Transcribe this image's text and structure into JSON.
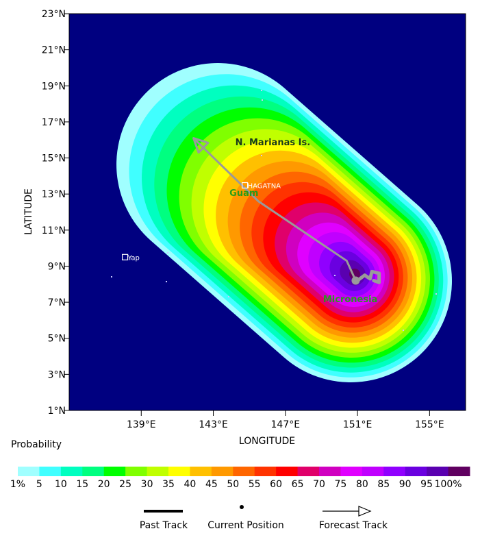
{
  "map": {
    "x_axis_title": "LONGITUDE",
    "y_axis_title": "LATITUDE",
    "lon_ticks": [
      "139°E",
      "143°E",
      "147°E",
      "151°E",
      "155°E"
    ],
    "lat_ticks": [
      "23°N",
      "21°N",
      "19°N",
      "17°N",
      "15°N",
      "13°N",
      "11°N",
      "9°N",
      "7°N",
      "5°N",
      "3°N",
      "1°N"
    ],
    "lon_range": [
      135.0,
      157.0
    ],
    "lat_range": [
      1.0,
      23.0
    ],
    "background_color": "#000080",
    "places": [
      {
        "label": "HAGATNA",
        "lon": 144.75,
        "lat": 13.48,
        "style": "city"
      },
      {
        "label": "Yap",
        "lon": 138.1,
        "lat": 9.5,
        "style": "city"
      },
      {
        "label": "Guam",
        "lon": 144.7,
        "lat": 12.9,
        "style": "region-green"
      },
      {
        "label": "N. Marianas Is.",
        "lon": 146.3,
        "lat": 15.7,
        "style": "region-dark"
      },
      {
        "label": "Micronesia",
        "lon": 150.6,
        "lat": 7.0,
        "style": "region-green"
      }
    ],
    "past_track": [
      [
        151.0,
        8.2
      ],
      [
        151.4,
        8.5
      ],
      [
        151.7,
        8.3
      ],
      [
        151.8,
        8.7
      ],
      [
        152.2,
        8.6
      ],
      [
        152.2,
        8.1
      ],
      [
        151.9,
        8.2
      ]
    ],
    "current_position": {
      "lon": 150.9,
      "lat": 8.2
    },
    "forecast_track": [
      [
        150.9,
        8.2
      ],
      [
        150.4,
        9.3
      ],
      [
        145.5,
        12.6
      ],
      [
        141.9,
        16.1
      ]
    ]
  },
  "legend": {
    "title": "Probability",
    "labels": [
      "1%",
      "5",
      "10",
      "15",
      "20",
      "25",
      "30",
      "35",
      "40",
      "45",
      "50",
      "55",
      "60",
      "65",
      "70",
      "75",
      "80",
      "85",
      "90",
      "95",
      "100%"
    ],
    "colors": [
      "#a0ffff",
      "#40ffff",
      "#00ffc0",
      "#00ff80",
      "#00ff00",
      "#80ff00",
      "#c0ff00",
      "#ffff00",
      "#ffc000",
      "#ff9900",
      "#ff6600",
      "#ff3300",
      "#ff0000",
      "#e0006a",
      "#d000c0",
      "#e000ff",
      "#c000ff",
      "#9000ff",
      "#6a00e0",
      "#5a00b0",
      "#600060"
    ]
  },
  "key": {
    "past_track_label": "Past Track",
    "current_position_label": "Current Position",
    "forecast_track_label": "Forecast Track"
  }
}
